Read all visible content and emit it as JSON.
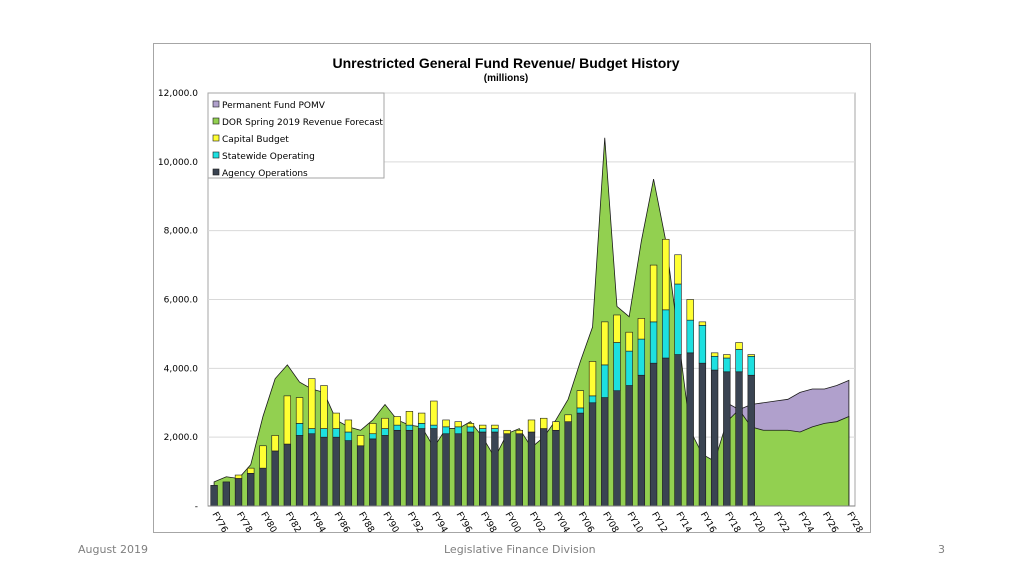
{
  "footer": {
    "date": "August 2019",
    "org": "Legislative Finance Division",
    "page": "3"
  },
  "chart_data": {
    "type": "bar",
    "title": "Unrestricted General Fund Revenue/ Budget History",
    "subtitle": "(millions)",
    "ylim": [
      0,
      12000
    ],
    "yticks": [
      {
        "value": 0,
        "label": "-"
      },
      {
        "value": 2000,
        "label": "2,000.0"
      },
      {
        "value": 4000,
        "label": "4,000.0"
      },
      {
        "value": 6000,
        "label": "6,000.0"
      },
      {
        "value": 8000,
        "label": "8,000.0"
      },
      {
        "value": 10000,
        "label": "10,000.0"
      },
      {
        "value": 12000,
        "label": "12,000.0"
      }
    ],
    "categories": [
      "FY76",
      "FY77",
      "FY78",
      "FY79",
      "FY80",
      "FY81",
      "FY82",
      "FY83",
      "FY84",
      "FY85",
      "FY86",
      "FY87",
      "FY88",
      "FY89",
      "FY90",
      "FY91",
      "FY92",
      "FY93",
      "FY94",
      "FY95",
      "FY96",
      "FY97",
      "FY98",
      "FY99",
      "FY00",
      "FY01",
      "FY02",
      "FY03",
      "FY04",
      "FY05",
      "FY06",
      "FY07",
      "FY08",
      "FY09",
      "FY10",
      "FY11",
      "FY12",
      "FY13",
      "FY14",
      "FY15",
      "FY16",
      "FY17",
      "FY18",
      "FY19",
      "FY20",
      "FY21",
      "FY22",
      "FY23",
      "FY24",
      "FY25",
      "FY26",
      "FY27",
      "FY28"
    ],
    "xtick_labels": [
      "FY76",
      "FY78",
      "FY80",
      "FY82",
      "FY84",
      "FY86",
      "FY88",
      "FY90",
      "FY92",
      "FY94",
      "FY96",
      "FY98",
      "FY00",
      "FY02",
      "FY04",
      "FY06",
      "FY08",
      "FY10",
      "FY12",
      "FY14",
      "FY16",
      "FY18",
      "FY20",
      "FY22",
      "FY24",
      "FY26",
      "FY28"
    ],
    "series": [
      {
        "name": "Permanent Fund POMV",
        "type": "area",
        "color": "#b0a0cc",
        "values": [
          null,
          null,
          null,
          null,
          null,
          null,
          null,
          null,
          null,
          null,
          null,
          null,
          null,
          null,
          null,
          null,
          null,
          null,
          null,
          null,
          null,
          null,
          null,
          null,
          null,
          null,
          null,
          null,
          null,
          null,
          null,
          null,
          null,
          null,
          null,
          null,
          null,
          null,
          null,
          null,
          null,
          null,
          3000,
          2800,
          2950,
          3000,
          3050,
          3100,
          3300,
          3400,
          3400,
          3500,
          3650
        ]
      },
      {
        "name": "DOR Spring 2019 Revenue Forecast",
        "type": "area",
        "color": "#92d050",
        "values": [
          700,
          850,
          800,
          1200,
          2600,
          3700,
          4100,
          3600,
          3400,
          3300,
          2500,
          2300,
          2200,
          2500,
          2950,
          2500,
          2350,
          2300,
          1700,
          2250,
          2250,
          2450,
          2000,
          1400,
          2100,
          2250,
          1700,
          2000,
          2500,
          3100,
          4200,
          5200,
          10700,
          5800,
          5500,
          7700,
          9500,
          7700,
          5000,
          2200,
          1500,
          1300,
          2450,
          2800,
          2300,
          2200,
          2200,
          2200,
          2150,
          2300,
          2400,
          2450,
          2600
        ]
      },
      {
        "name": "Agency Operations",
        "type": "bar",
        "color": "#3a4452",
        "values": [
          600,
          700,
          800,
          950,
          1100,
          1600,
          1800,
          2050,
          2100,
          2000,
          2000,
          1900,
          1750,
          1950,
          2050,
          2200,
          2200,
          2250,
          2250,
          2100,
          2100,
          2150,
          2150,
          2150,
          2100,
          2100,
          2150,
          2250,
          2200,
          2450,
          2700,
          3000,
          3150,
          3350,
          3500,
          3800,
          4150,
          4300,
          4400,
          4450,
          4150,
          3950,
          3900,
          3900,
          3800,
          null,
          null,
          null,
          null,
          null,
          null,
          null,
          null
        ]
      },
      {
        "name": "Statewide Operating",
        "type": "bar",
        "color": "#1de0e0",
        "values": [
          0,
          0,
          0,
          0,
          0,
          0,
          0,
          350,
          150,
          250,
          250,
          250,
          0,
          150,
          200,
          150,
          150,
          150,
          100,
          200,
          200,
          150,
          100,
          100,
          0,
          0,
          0,
          0,
          0,
          0,
          150,
          200,
          950,
          1400,
          1000,
          1050,
          1200,
          1400,
          2050,
          950,
          1100,
          400,
          400,
          650,
          550,
          null,
          null,
          null,
          null,
          null,
          null,
          null,
          null
        ]
      },
      {
        "name": "Capital Budget",
        "type": "bar",
        "color": "#ffff33",
        "values": [
          0,
          0,
          100,
          150,
          650,
          450,
          1400,
          750,
          1450,
          1250,
          450,
          350,
          300,
          300,
          300,
          250,
          400,
          300,
          700,
          200,
          150,
          100,
          100,
          100,
          100,
          100,
          350,
          300,
          250,
          200,
          500,
          1000,
          1250,
          800,
          550,
          600,
          1650,
          2050,
          850,
          600,
          100,
          100,
          100,
          200,
          50,
          null,
          null,
          null,
          null,
          null,
          null,
          null,
          null
        ]
      }
    ],
    "legend": [
      {
        "label": "Permanent Fund POMV",
        "color": "#b0a0cc"
      },
      {
        "label": "DOR Spring 2019 Revenue Forecast",
        "color": "#92d050"
      },
      {
        "label": "Capital Budget",
        "color": "#ffff33"
      },
      {
        "label": "Statewide Operating",
        "color": "#1de0e0"
      },
      {
        "label": "Agency Operations",
        "color": "#3a4452"
      }
    ],
    "legend_position": "top-left"
  }
}
